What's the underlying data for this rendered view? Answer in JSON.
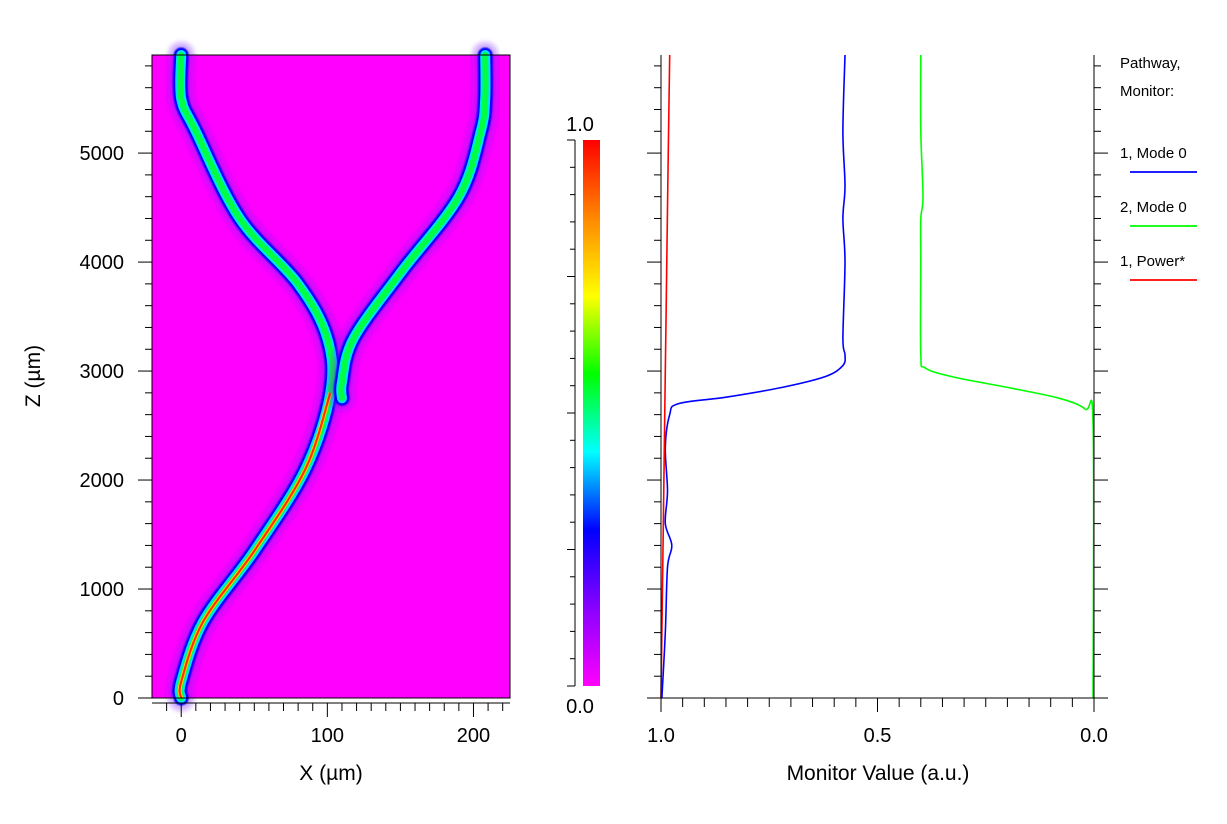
{
  "chart_data": [
    {
      "type": "heatmap",
      "xlabel": "X (µm)",
      "ylabel": "Z (µm)",
      "xlim": [
        -20,
        225
      ],
      "ylim": [
        0,
        5900
      ],
      "xticks": [
        "0",
        "100",
        "200"
      ],
      "xtick_values": [
        0,
        100,
        200
      ],
      "yticks": [
        "0",
        "1000",
        "2000",
        "3000",
        "4000",
        "5000"
      ],
      "ytick_values": [
        0,
        1000,
        2000,
        3000,
        4000,
        5000
      ],
      "background_color": "#ff00ff",
      "paths": [
        {
          "name": "1",
          "points": [
            [
              0,
              0
            ],
            [
              0,
              150
            ],
            [
              15,
              700
            ],
            [
              50,
              1350
            ],
            [
              85,
              2100
            ],
            [
              102,
              2800
            ],
            [
              100,
              3300
            ],
            [
              80,
              3800
            ],
            [
              40,
              4400
            ],
            [
              10,
              5200
            ],
            [
              0,
              5500
            ],
            [
              0,
              5900
            ]
          ]
        },
        {
          "name": "2",
          "points": [
            [
              110,
              2750
            ],
            [
              110,
              2900
            ],
            [
              118,
              3300
            ],
            [
              150,
              3900
            ],
            [
              190,
              4600
            ],
            [
              205,
              5200
            ],
            [
              208,
              5500
            ],
            [
              208,
              5900
            ]
          ]
        }
      ],
      "colorbar": {
        "min_label": "0.0",
        "max_label": "1.0",
        "range": [
          0,
          1
        ],
        "colors": [
          "#ff00ff",
          "#8800ff",
          "#0000ff",
          "#00ffff",
          "#00ff00",
          "#ffff00",
          "#ff8800",
          "#ff0000"
        ]
      }
    },
    {
      "type": "line",
      "xlabel": "Monitor Value (a.u.)",
      "xlim": [
        1.0,
        0.0
      ],
      "ylim": [
        0,
        5900
      ],
      "xticks": [
        "1.0",
        "0.5",
        "0.0"
      ],
      "xtick_values": [
        1.0,
        0.5,
        0.0
      ],
      "legend_title": [
        "Pathway,",
        "Monitor:"
      ],
      "legend_position": "right",
      "series": [
        {
          "name": "1, Mode 0",
          "color": "#0000ff",
          "points": [
            [
              0.998,
              0
            ],
            [
              0.99,
              600
            ],
            [
              0.985,
              1200
            ],
            [
              0.975,
              1400
            ],
            [
              0.99,
              1600
            ],
            [
              0.985,
              1900
            ],
            [
              0.99,
              2300
            ],
            [
              0.98,
              2600
            ],
            [
              0.96,
              2700
            ],
            [
              0.85,
              2760
            ],
            [
              0.72,
              2850
            ],
            [
              0.62,
              2950
            ],
            [
              0.58,
              3050
            ],
            [
              0.575,
              3150
            ],
            [
              0.58,
              3300
            ],
            [
              0.575,
              4000
            ],
            [
              0.58,
              4400
            ],
            [
              0.575,
              4700
            ],
            [
              0.58,
              5200
            ],
            [
              0.575,
              5900
            ]
          ]
        },
        {
          "name": "2, Mode 0",
          "color": "#00ff00",
          "points": [
            [
              0.002,
              0
            ],
            [
              0.002,
              2500
            ],
            [
              0.02,
              2650
            ],
            [
              0.08,
              2750
            ],
            [
              0.2,
              2850
            ],
            [
              0.33,
              2950
            ],
            [
              0.39,
              3030
            ],
            [
              0.4,
              3150
            ],
            [
              0.4,
              4000
            ],
            [
              0.4,
              4400
            ],
            [
              0.395,
              4600
            ],
            [
              0.4,
              5200
            ],
            [
              0.4,
              5900
            ]
          ]
        },
        {
          "name": "1, Power*",
          "color": "#ff0000",
          "points": [
            [
              1.0,
              0
            ],
            [
              0.995,
              1500
            ],
            [
              0.99,
              3000
            ],
            [
              0.985,
              4500
            ],
            [
              0.98,
              5900
            ]
          ]
        }
      ]
    }
  ]
}
